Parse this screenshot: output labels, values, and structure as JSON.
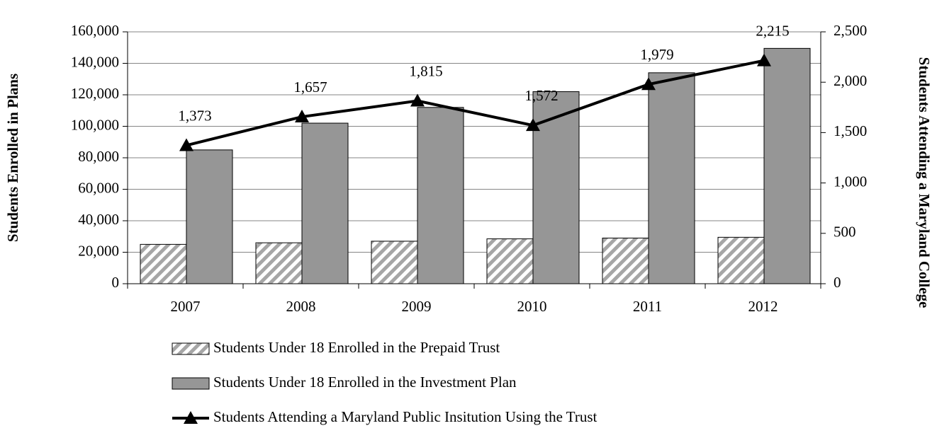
{
  "chart_data": {
    "type": "bar-line",
    "categories": [
      "2007",
      "2008",
      "2009",
      "2010",
      "2011",
      "2012"
    ],
    "ylabel": "Students Enrolled in Plans",
    "y2label": "Students Attending a Maryland College",
    "ylim": [
      0,
      160000
    ],
    "yticks": [
      0,
      {
        "value": 20000,
        "label": "20,000"
      },
      {
        "value": 40000,
        "label": "40,000"
      },
      {
        "value": 60000,
        "label": "60,000"
      },
      {
        "value": 80000,
        "label": "80,000"
      },
      {
        "value": 100000,
        "label": "100,000"
      },
      {
        "value": 120000,
        "label": "120,000"
      },
      {
        "value": 140000,
        "label": "140,000"
      },
      {
        "value": 160000,
        "label": "160,000"
      }
    ],
    "y2lim": [
      0,
      2500
    ],
    "y2ticks": [
      0,
      500,
      {
        "value": 1000,
        "label": "1,000"
      },
      {
        "value": 1500,
        "label": "1,500"
      },
      {
        "value": 2000,
        "label": "2,000"
      },
      {
        "value": 2500,
        "label": "2,500"
      }
    ],
    "grid": true,
    "series": [
      {
        "name": "Students Under 18 Enrolled in the Prepaid Trust",
        "type": "bar",
        "color": "#a6a6a6",
        "hatch": true,
        "values": [
          25000,
          26000,
          27000,
          28500,
          29000,
          29500
        ]
      },
      {
        "name": "Students Under 18 Enrolled in the Investment Plan",
        "type": "bar",
        "color": "#969696",
        "values": [
          85000,
          102000,
          112000,
          122000,
          134000,
          149500
        ]
      },
      {
        "name": "Students Attending a Maryland Public Insitution Using the Trust",
        "type": "line",
        "axis": "y2",
        "color": "#000000",
        "values": [
          1373,
          1657,
          1815,
          1572,
          1979,
          2215
        ],
        "value_labels": [
          "1,373",
          "1,657",
          "1,815",
          "1,572",
          "1,979",
          "2,215"
        ]
      }
    ],
    "legend": "bottom"
  }
}
